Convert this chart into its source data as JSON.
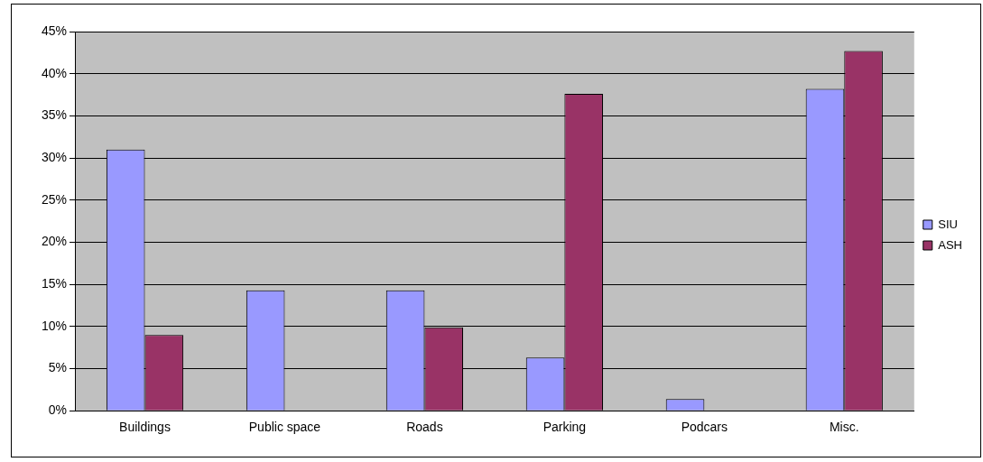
{
  "chart_data": {
    "type": "bar",
    "categories": [
      "Buildings",
      "Public space",
      "Roads",
      "Parking",
      "Podcars",
      "Misc."
    ],
    "series": [
      {
        "name": "SIU",
        "color": "#9999ff",
        "values": [
          31,
          14.3,
          14.3,
          6.3,
          1.4,
          38.2
        ]
      },
      {
        "name": "ASH",
        "color": "#993366",
        "values": [
          9,
          0,
          9.9,
          37.6,
          0,
          42.7
        ]
      }
    ],
    "ylim": [
      0,
      45
    ],
    "yticks": [
      {
        "value": 0,
        "label": "0%"
      },
      {
        "value": 5,
        "label": "5%"
      },
      {
        "value": 10,
        "label": "10%"
      },
      {
        "value": 15,
        "label": "15%"
      },
      {
        "value": 20,
        "label": "20%"
      },
      {
        "value": 25,
        "label": "25%"
      },
      {
        "value": 30,
        "label": "30%"
      },
      {
        "value": 35,
        "label": "35%"
      },
      {
        "value": 40,
        "label": "40%"
      },
      {
        "value": 45,
        "label": "45%"
      }
    ],
    "grid": "y",
    "legend": "right"
  }
}
